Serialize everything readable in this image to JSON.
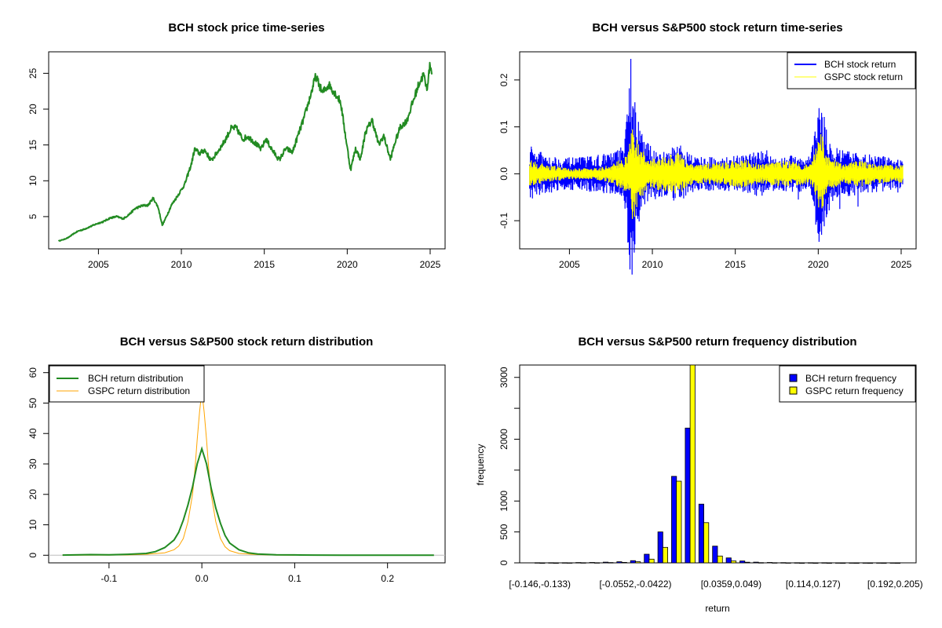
{
  "chart_data": [
    {
      "type": "line",
      "title": "BCH stock price time-series",
      "xlabel": "",
      "ylabel": "",
      "xlim": [
        2002.0,
        2025.9
      ],
      "ylim": [
        0.5,
        28.0
      ],
      "x_ticks": [
        2005,
        2010,
        2015,
        2020,
        2025
      ],
      "y_ticks": [
        5,
        10,
        15,
        20,
        25
      ],
      "grid": false,
      "colors": {
        "series": "#228B22"
      },
      "series": [
        {
          "values": [
            [
              2002.6,
              1.6
            ],
            [
              2002.9,
              1.8
            ],
            [
              2003.2,
              2.1
            ],
            [
              2003.5,
              2.6
            ],
            [
              2003.8,
              3.0
            ],
            [
              2004.1,
              3.2
            ],
            [
              2004.5,
              3.6
            ],
            [
              2004.9,
              4.0
            ],
            [
              2005.3,
              4.3
            ],
            [
              2005.7,
              4.8
            ],
            [
              2006.1,
              5.0
            ],
            [
              2006.5,
              4.7
            ],
            [
              2006.9,
              5.4
            ],
            [
              2007.2,
              6.1
            ],
            [
              2007.6,
              6.5
            ],
            [
              2008.0,
              6.6
            ],
            [
              2008.3,
              7.6
            ],
            [
              2008.6,
              6.3
            ],
            [
              2008.85,
              3.8
            ],
            [
              2009.1,
              5.0
            ],
            [
              2009.4,
              6.6
            ],
            [
              2009.8,
              8.0
            ],
            [
              2010.2,
              9.5
            ],
            [
              2010.6,
              12.3
            ],
            [
              2010.8,
              14.4
            ],
            [
              2011.1,
              13.8
            ],
            [
              2011.4,
              14.3
            ],
            [
              2011.8,
              12.8
            ],
            [
              2012.2,
              14.1
            ],
            [
              2012.6,
              15.5
            ],
            [
              2013.0,
              17.3
            ],
            [
              2013.3,
              17.4
            ],
            [
              2013.7,
              15.8
            ],
            [
              2014.0,
              16.2
            ],
            [
              2014.4,
              15.4
            ],
            [
              2014.8,
              14.4
            ],
            [
              2015.1,
              15.8
            ],
            [
              2015.5,
              14.2
            ],
            [
              2015.9,
              12.9
            ],
            [
              2016.3,
              14.5
            ],
            [
              2016.7,
              14.0
            ],
            [
              2017.0,
              16.1
            ],
            [
              2017.4,
              18.8
            ],
            [
              2017.8,
              22.0
            ],
            [
              2018.1,
              24.6
            ],
            [
              2018.5,
              22.3
            ],
            [
              2018.9,
              23.4
            ],
            [
              2019.3,
              22.1
            ],
            [
              2019.6,
              21.0
            ],
            [
              2019.9,
              16.2
            ],
            [
              2020.2,
              11.5
            ],
            [
              2020.5,
              14.5
            ],
            [
              2020.8,
              13.0
            ],
            [
              2021.1,
              16.8
            ],
            [
              2021.5,
              18.5
            ],
            [
              2021.9,
              15.0
            ],
            [
              2022.2,
              16.3
            ],
            [
              2022.6,
              13.0
            ],
            [
              2022.9,
              15.5
            ],
            [
              2023.2,
              17.5
            ],
            [
              2023.6,
              18.4
            ],
            [
              2023.9,
              20.6
            ],
            [
              2024.3,
              23.4
            ],
            [
              2024.6,
              24.8
            ],
            [
              2024.8,
              22.8
            ],
            [
              2025.0,
              26.3
            ],
            [
              2025.1,
              25.0
            ]
          ]
        }
      ]
    },
    {
      "type": "line",
      "title": "BCH versus S&P500 stock return time-series",
      "xlabel": "",
      "ylabel": "",
      "xlim": [
        2002.0,
        2025.9
      ],
      "ylim": [
        -0.16,
        0.26
      ],
      "x_ticks": [
        2005,
        2010,
        2015,
        2020,
        2025
      ],
      "y_ticks": [
        -0.1,
        0.0,
        0.1,
        0.2
      ],
      "y_tick_labels": [
        "-0.1",
        "0.0",
        "0.1",
        "0.2"
      ],
      "grid": false,
      "legend": {
        "placement": "top-right"
      },
      "colors": {
        "bch": "#0000FF",
        "gspc": "#FFFF00"
      },
      "series": [
        {
          "name": "BCH stock return",
          "start": 2002.6,
          "end": 2025.1,
          "envelope": [
            [
              2002.6,
              0.055
            ],
            [
              2003.5,
              0.045
            ],
            [
              2004.5,
              0.035
            ],
            [
              2005.5,
              0.035
            ],
            [
              2006.5,
              0.04
            ],
            [
              2007.5,
              0.045
            ],
            [
              2008.3,
              0.06
            ],
            [
              2008.7,
              0.245
            ],
            [
              2009.0,
              0.14
            ],
            [
              2009.5,
              0.07
            ],
            [
              2010.5,
              0.05
            ],
            [
              2011.6,
              0.06
            ],
            [
              2012.5,
              0.04
            ],
            [
              2014.0,
              0.035
            ],
            [
              2015.5,
              0.04
            ],
            [
              2016.5,
              0.05
            ],
            [
              2017.5,
              0.035
            ],
            [
              2018.5,
              0.04
            ],
            [
              2019.5,
              0.04
            ],
            [
              2020.0,
              0.14
            ],
            [
              2020.3,
              0.13
            ],
            [
              2020.8,
              0.06
            ],
            [
              2021.5,
              0.05
            ],
            [
              2022.5,
              0.045
            ],
            [
              2023.5,
              0.04
            ],
            [
              2024.5,
              0.035
            ],
            [
              2025.1,
              0.03
            ]
          ],
          "extremes": [
            [
              2002.7,
              0.058,
              -0.03
            ],
            [
              2003.2,
              0.04,
              -0.045
            ],
            [
              2007.9,
              0.05,
              -0.04
            ],
            [
              2008.7,
              0.245,
              -0.125
            ],
            [
              2008.85,
              0.14,
              -0.1
            ],
            [
              2009.2,
              0.07,
              -0.08
            ],
            [
              2011.7,
              0.06,
              -0.05
            ],
            [
              2016.9,
              0.05,
              -0.03
            ],
            [
              2018.8,
              0.03,
              -0.055
            ],
            [
              2020.05,
              0.14,
              -0.145
            ],
            [
              2020.2,
              0.13,
              -0.13
            ],
            [
              2021.3,
              0.03,
              -0.075
            ],
            [
              2022.4,
              0.035,
              -0.07
            ],
            [
              2024.8,
              0.03,
              -0.04
            ]
          ]
        },
        {
          "name": "GSPC stock return",
          "start": 2002.6,
          "end": 2025.1,
          "envelope": [
            [
              2002.6,
              0.03
            ],
            [
              2003.5,
              0.02
            ],
            [
              2005.0,
              0.012
            ],
            [
              2006.5,
              0.012
            ],
            [
              2007.5,
              0.02
            ],
            [
              2008.5,
              0.04
            ],
            [
              2008.8,
              0.11
            ],
            [
              2009.2,
              0.06
            ],
            [
              2009.8,
              0.03
            ],
            [
              2011.6,
              0.045
            ],
            [
              2012.5,
              0.02
            ],
            [
              2015.6,
              0.03
            ],
            [
              2016.5,
              0.02
            ],
            [
              2018.0,
              0.03
            ],
            [
              2019.5,
              0.02
            ],
            [
              2020.2,
              0.09
            ],
            [
              2020.5,
              0.04
            ],
            [
              2021.5,
              0.02
            ],
            [
              2022.5,
              0.03
            ],
            [
              2023.5,
              0.02
            ],
            [
              2025.1,
              0.02
            ]
          ]
        }
      ]
    },
    {
      "type": "line",
      "title": "BCH versus S&P500 stock return distribution",
      "xlabel": "",
      "ylabel": "",
      "xlim": [
        -0.165,
        0.262
      ],
      "ylim": [
        -2.5,
        62.5
      ],
      "x_ticks": [
        -0.1,
        0.0,
        0.1,
        0.2
      ],
      "x_tick_labels": [
        "-0.1",
        "0.0",
        "0.1",
        "0.2"
      ],
      "y_ticks": [
        0,
        10,
        20,
        30,
        40,
        50,
        60
      ],
      "grid": false,
      "legend": {
        "placement": "top-left"
      },
      "colors": {
        "bch": "#228B22",
        "gspc": "#FFA500",
        "baseline": "#BEBEBE"
      },
      "series": [
        {
          "name": "BCH return distribution",
          "x": [
            -0.15,
            -0.12,
            -0.1,
            -0.08,
            -0.06,
            -0.05,
            -0.04,
            -0.03,
            -0.025,
            -0.02,
            -0.015,
            -0.01,
            -0.005,
            0.0,
            0.005,
            0.01,
            0.015,
            0.02,
            0.025,
            0.03,
            0.04,
            0.05,
            0.06,
            0.08,
            0.1,
            0.12,
            0.15,
            0.2,
            0.25
          ],
          "values": [
            0.05,
            0.2,
            0.15,
            0.3,
            0.6,
            1.2,
            2.5,
            5.0,
            7.5,
            11.5,
            16.5,
            22.5,
            30.0,
            35.0,
            30.0,
            22.0,
            15.5,
            10.5,
            6.5,
            4.0,
            1.8,
            0.8,
            0.4,
            0.15,
            0.1,
            0.05,
            0.03,
            0.02,
            0.01
          ]
        },
        {
          "name": "GSPC return distribution",
          "x": [
            -0.15,
            -0.1,
            -0.08,
            -0.06,
            -0.04,
            -0.03,
            -0.025,
            -0.02,
            -0.015,
            -0.01,
            -0.0075,
            -0.005,
            -0.0025,
            0.0,
            0.0025,
            0.005,
            0.0075,
            0.01,
            0.015,
            0.02,
            0.025,
            0.03,
            0.04,
            0.06,
            0.08,
            0.1
          ],
          "values": [
            0.0,
            0.05,
            0.1,
            0.3,
            0.8,
            1.8,
            3.0,
            5.5,
            11.0,
            20.0,
            28.0,
            38.0,
            47.0,
            54.0,
            47.0,
            38.0,
            28.0,
            20.0,
            11.0,
            5.5,
            2.8,
            1.5,
            0.6,
            0.2,
            0.05,
            0.0
          ]
        }
      ]
    },
    {
      "type": "bar",
      "title": "BCH versus S&P500 return frequency distribution",
      "xlabel": "return",
      "ylabel": "frequency",
      "ylim": [
        0,
        3200
      ],
      "y_ticks": [
        0,
        500,
        1000,
        1500,
        2000,
        2500,
        3000
      ],
      "y_tick_labels": [
        "0",
        "500",
        "1000",
        "",
        "2000",
        "",
        "3000"
      ],
      "grid": false,
      "legend": {
        "placement": "top-right"
      },
      "colors": {
        "bch": "#0000FF",
        "gspc": "#FFFF00",
        "border": "#000000"
      },
      "x_tick_labels": [
        {
          "bin": 0,
          "label": "[-0.146,-0.133)"
        },
        {
          "bin": 7,
          "label": "[-0.0552,-0.0422)"
        },
        {
          "bin": 14,
          "label": "[0.0359,0.049)"
        },
        {
          "bin": 20,
          "label": "[0.114,0.127)"
        },
        {
          "bin": 26,
          "label": "[0.192,0.205)"
        }
      ],
      "bin_count": 27,
      "series": [
        {
          "name": "BCH return frequency",
          "values": [
            2,
            3,
            3,
            5,
            6,
            12,
            18,
            35,
            140,
            500,
            1400,
            2180,
            950,
            270,
            80,
            30,
            12,
            6,
            4,
            3,
            2,
            2,
            1,
            1,
            1,
            1,
            1
          ]
        },
        {
          "name": "GSPC return frequency",
          "values": [
            0,
            0,
            1,
            2,
            3,
            5,
            8,
            18,
            60,
            250,
            1320,
            3200,
            650,
            110,
            30,
            10,
            4,
            2,
            1,
            0,
            0,
            0,
            0,
            0,
            0,
            0,
            0
          ]
        }
      ]
    }
  ]
}
